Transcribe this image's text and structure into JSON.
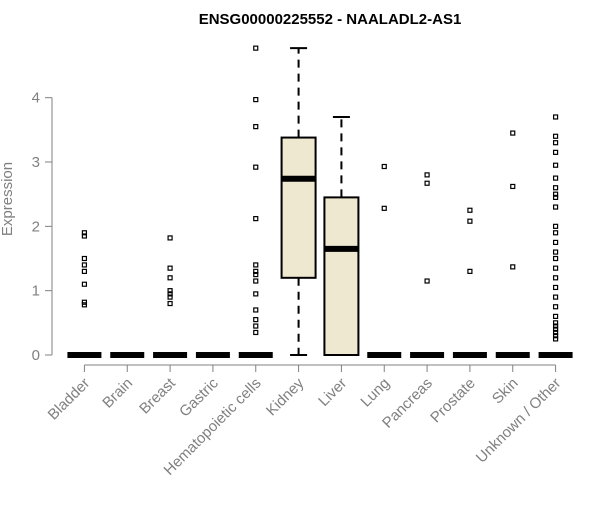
{
  "chart_data": {
    "type": "box",
    "title": "ENSG00000225552 - NAALADL2-AS1",
    "xlabel": "",
    "ylabel": "Expression",
    "ylim": [
      0,
      4.85
    ],
    "y_ticks": [
      0,
      1,
      2,
      3,
      4
    ],
    "grid": false,
    "box_fill": "#efe8d0",
    "box_stroke": "#000000",
    "axis_color": "#808080",
    "categories": [
      "Bladder",
      "Brain",
      "Breast",
      "Gastric",
      "Hematopoietic cells",
      "Kidney",
      "Liver",
      "Lung",
      "Pancreas",
      "Prostate",
      "Skin",
      "Unknown / Other"
    ],
    "boxes": [
      {
        "q1": 0,
        "median": 0,
        "q3": 0,
        "whisker_low": 0,
        "whisker_high": 0,
        "outliers": [
          0.78,
          0.82,
          1.1,
          1.3,
          1.4,
          1.5,
          1.85,
          1.9
        ]
      },
      {
        "q1": 0,
        "median": 0,
        "q3": 0,
        "whisker_low": 0,
        "whisker_high": 0,
        "outliers": []
      },
      {
        "q1": 0,
        "median": 0,
        "q3": 0,
        "whisker_low": 0,
        "whisker_high": 0,
        "outliers": [
          0.8,
          0.9,
          0.95,
          1.0,
          1.2,
          1.35,
          1.82
        ]
      },
      {
        "q1": 0,
        "median": 0,
        "q3": 0,
        "whisker_low": 0,
        "whisker_high": 0,
        "outliers": []
      },
      {
        "q1": 0,
        "median": 0,
        "q3": 0,
        "whisker_low": 0,
        "whisker_high": 0,
        "outliers": [
          0.35,
          0.45,
          0.55,
          0.7,
          0.95,
          1.15,
          1.25,
          1.3,
          1.4,
          2.12,
          2.92,
          3.55,
          3.97,
          4.77
        ]
      },
      {
        "q1": 1.2,
        "median": 2.74,
        "q3": 3.38,
        "whisker_low": 0,
        "whisker_high": 4.77,
        "outliers": []
      },
      {
        "q1": 0,
        "median": 1.65,
        "q3": 2.45,
        "whisker_low": 0,
        "whisker_high": 3.7,
        "outliers": []
      },
      {
        "q1": 0,
        "median": 0,
        "q3": 0,
        "whisker_low": 0,
        "whisker_high": 0,
        "outliers": [
          2.28,
          2.93
        ]
      },
      {
        "q1": 0,
        "median": 0,
        "q3": 0,
        "whisker_low": 0,
        "whisker_high": 0,
        "outliers": [
          1.15,
          2.67,
          2.8
        ]
      },
      {
        "q1": 0,
        "median": 0,
        "q3": 0,
        "whisker_low": 0,
        "whisker_high": 0,
        "outliers": [
          1.3,
          2.08,
          2.25
        ]
      },
      {
        "q1": 0,
        "median": 0,
        "q3": 0,
        "whisker_low": 0,
        "whisker_high": 0,
        "outliers": [
          1.37,
          2.62,
          3.45
        ]
      },
      {
        "q1": 0,
        "median": 0,
        "q3": 0,
        "whisker_low": 0,
        "whisker_high": 0,
        "outliers": [
          0.25,
          0.3,
          0.35,
          0.4,
          0.45,
          0.5,
          0.6,
          0.75,
          0.9,
          1.05,
          1.2,
          1.35,
          1.5,
          1.6,
          1.75,
          1.9,
          2.0,
          2.3,
          2.45,
          2.5,
          2.6,
          2.75,
          2.95,
          3.15,
          3.3,
          3.4,
          3.7
        ]
      }
    ]
  }
}
